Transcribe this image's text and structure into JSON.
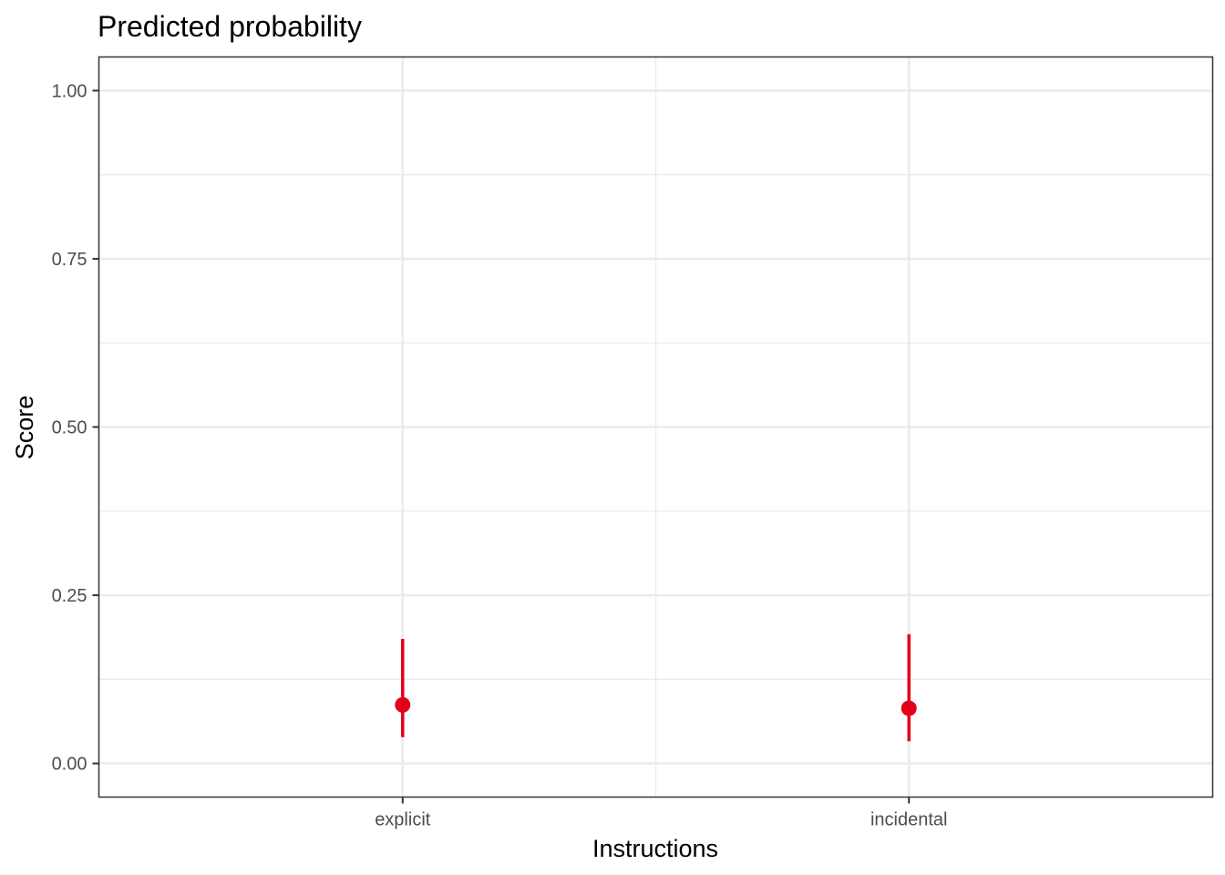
{
  "chart_data": {
    "type": "pointrange",
    "title": "Predicted probability",
    "xlabel": "Instructions",
    "ylabel": "Score",
    "categories": [
      "explicit",
      "incidental"
    ],
    "series": [
      {
        "values": [
          0.087,
          0.082
        ],
        "lower": [
          0.039,
          0.033
        ],
        "upper": [
          0.185,
          0.192
        ]
      }
    ],
    "ylim": [
      -0.05,
      1.05
    ],
    "yticks": [
      0.0,
      0.25,
      0.5,
      0.75,
      1.0
    ],
    "ytick_labels": [
      "0.00",
      "0.25",
      "0.50",
      "0.75",
      "1.00"
    ],
    "grid": true,
    "point_color": "#e3001b"
  }
}
